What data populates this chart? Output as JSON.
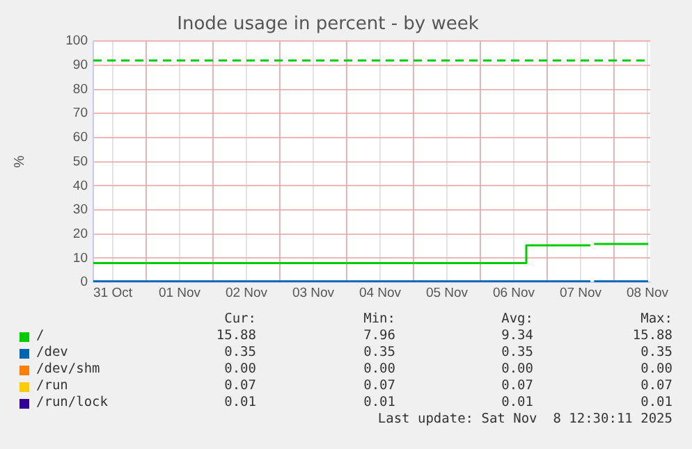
{
  "chart_data": {
    "type": "step",
    "title": "Inode usage in percent - by week",
    "ylabel": "%",
    "xlim": [
      "2025-10-31T05:00",
      "2025-11-08T13:00"
    ],
    "xticks": [
      {
        "value": "2025-10-31T12:00",
        "label": "31 Oct"
      },
      {
        "value": "2025-11-01T00:00",
        "label": null
      },
      {
        "value": "2025-11-01T12:00",
        "label": "01 Nov"
      },
      {
        "value": "2025-11-02T00:00",
        "label": null
      },
      {
        "value": "2025-11-02T12:00",
        "label": "02 Nov"
      },
      {
        "value": "2025-11-03T00:00",
        "label": null
      },
      {
        "value": "2025-11-03T12:00",
        "label": "03 Nov"
      },
      {
        "value": "2025-11-04T00:00",
        "label": null
      },
      {
        "value": "2025-11-04T12:00",
        "label": "04 Nov"
      },
      {
        "value": "2025-11-05T00:00",
        "label": null
      },
      {
        "value": "2025-11-05T12:00",
        "label": "05 Nov"
      },
      {
        "value": "2025-11-06T00:00",
        "label": null
      },
      {
        "value": "2025-11-06T12:00",
        "label": "06 Nov"
      },
      {
        "value": "2025-11-07T00:00",
        "label": null
      },
      {
        "value": "2025-11-07T12:00",
        "label": "07 Nov"
      },
      {
        "value": "2025-11-08T00:00",
        "label": null
      },
      {
        "value": "2025-11-08T12:00",
        "label": "08 Nov"
      }
    ],
    "ylim": [
      0,
      100
    ],
    "yticks": [
      0,
      10,
      20,
      30,
      40,
      50,
      60,
      70,
      80,
      90,
      100
    ],
    "grid": true,
    "legend": "bottom",
    "series": [
      {
        "name": "/",
        "color": "#00cc00",
        "x": [
          "2025-10-31T05:00",
          "2025-11-06T16:30",
          "2025-11-07T10:00",
          "2025-11-07T15:30",
          "2025-11-07T15:40",
          "2025-11-07T16:50",
          "2025-11-08T12:15"
        ],
        "values": [
          8.4,
          7.96,
          15.3,
          15.3,
          null,
          15.88,
          15.88
        ]
      },
      {
        "name": "/dev",
        "color": "#0066b3",
        "x": [
          "2025-10-31T05:00",
          "2025-11-07T15:30",
          "2025-11-07T15:40",
          "2025-11-07T16:50",
          "2025-11-08T12:15"
        ],
        "values": [
          0.35,
          0.35,
          null,
          0.35,
          0.35
        ]
      },
      {
        "name": "/dev/shm",
        "color": "#ff8000"
      },
      {
        "name": "/run",
        "color": "#ffcc00"
      },
      {
        "name": "/run/lock",
        "color": "#330099"
      }
    ],
    "ref_lines": [
      {
        "axis": "y",
        "value": 92,
        "label": null,
        "color": "#00cc00",
        "line_style": "dashed"
      }
    ],
    "annotations": [
      "Cur:",
      "Min:",
      "Avg:",
      "Max:",
      "15.88",
      "7.96",
      "9.34",
      "15.88",
      "0.35",
      "0.35",
      "0.35",
      "0.35",
      "0.00",
      "0.00",
      "0.00",
      "0.00",
      "0.07",
      "0.07",
      "0.07",
      "0.07",
      "0.01",
      "0.01",
      "0.01",
      "0.01",
      "Last update: Sat Nov  8 12:30:11 2025"
    ]
  }
}
